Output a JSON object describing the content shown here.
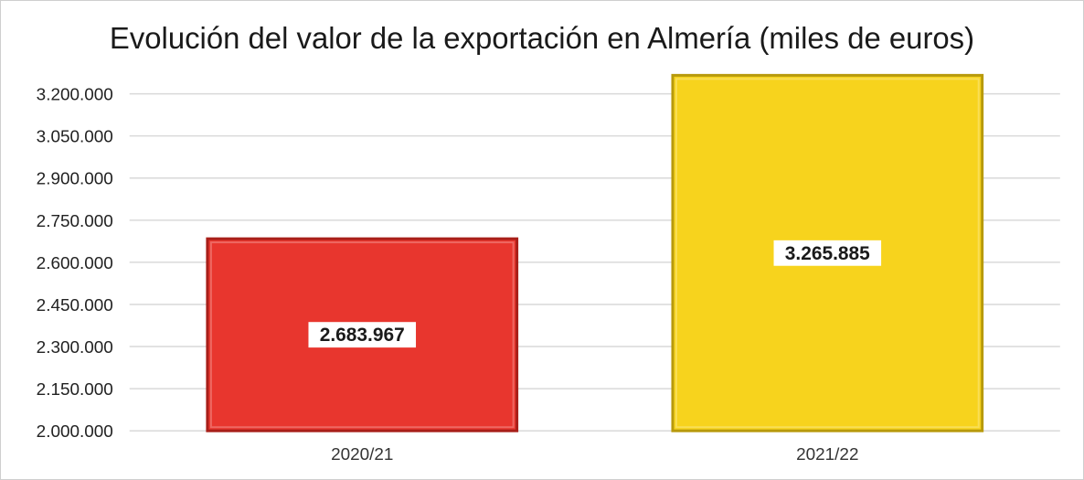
{
  "chart_data": {
    "type": "bar",
    "title": "Evolución del valor de la exportación en Almería (miles de euros)",
    "categories": [
      "2020/21",
      "2021/22"
    ],
    "values": [
      2683967,
      3265885
    ],
    "data_labels": [
      "2.683.967",
      "3.265.885"
    ],
    "ylim": [
      2000000,
      3300000
    ],
    "yticks": [
      2000000,
      2150000,
      2300000,
      2450000,
      2600000,
      2750000,
      2900000,
      3050000,
      3200000
    ],
    "ytick_labels": [
      "2.000.000",
      "2.150.000",
      "2.300.000",
      "2.450.000",
      "2.600.000",
      "2.750.000",
      "2.900.000",
      "3.050.000",
      "3.200.000"
    ],
    "xlabel": "",
    "ylabel": "",
    "grid": true,
    "legend": "none",
    "colors": [
      "#e8362e",
      "#f7d31d"
    ],
    "edge_colors": [
      "#a81f19",
      "#b89a0c"
    ]
  }
}
